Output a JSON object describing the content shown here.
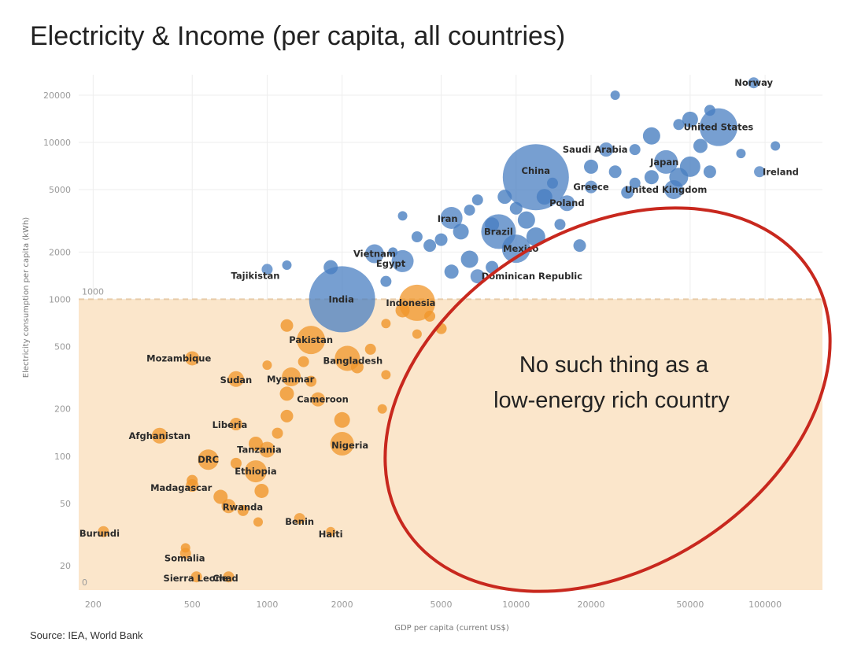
{
  "chart_data": {
    "type": "scatter",
    "title": "Electricity & Income (per capita, all countries)",
    "xlabel": "GDP per capita (current US$)",
    "ylabel": "Electricity consumption per capita (kWh)",
    "x_scale": "log",
    "y_scale": "log",
    "xlim": [
      175,
      170000
    ],
    "ylim": [
      14,
      27000
    ],
    "x_ticks": [
      {
        "value": 200,
        "label": "200"
      },
      {
        "value": 500,
        "label": "500"
      },
      {
        "value": 1000,
        "label": "1000"
      },
      {
        "value": 2000,
        "label": "2000"
      },
      {
        "value": 5000,
        "label": "5000"
      },
      {
        "value": 10000,
        "label": "10000"
      },
      {
        "value": 20000,
        "label": "20000"
      },
      {
        "value": 50000,
        "label": "50000"
      },
      {
        "value": 100000,
        "label": "100000"
      }
    ],
    "y_ticks": [
      {
        "value": 20,
        "label": "20"
      },
      {
        "value": 50,
        "label": "50"
      },
      {
        "value": 100,
        "label": "100"
      },
      {
        "value": 200,
        "label": "200"
      },
      {
        "value": 500,
        "label": "500"
      },
      {
        "value": 1000,
        "label": "1000"
      },
      {
        "value": 2000,
        "label": "2000"
      },
      {
        "value": 5000,
        "label": "5000"
      },
      {
        "value": 10000,
        "label": "10000"
      },
      {
        "value": 20000,
        "label": "20000"
      }
    ],
    "threshold": {
      "value": 1000,
      "label": "1000",
      "floor_label": "0"
    },
    "colors": {
      "above": "#4a7fc1",
      "below": "#f0962a",
      "shade": "#fbe6cb",
      "ellipse": "#c8281e",
      "threshold_line": "#e8cba8",
      "grid": "#eeeeee"
    },
    "annotation": {
      "lines": [
        "No such thing as a",
        "low-energy rich country"
      ]
    },
    "source": "Source: IEA, World Bank",
    "labeled_points": [
      {
        "name": "Norway",
        "x": 90000,
        "y": 24000,
        "r": 7
      },
      {
        "name": "United States",
        "x": 65000,
        "y": 12500,
        "r": 24
      },
      {
        "name": "Ireland",
        "x": 95000,
        "y": 6500,
        "r": 7
      },
      {
        "name": "Japan",
        "x": 40000,
        "y": 7500,
        "r": 15
      },
      {
        "name": "Saudi Arabia",
        "x": 23000,
        "y": 9000,
        "r": 9
      },
      {
        "name": "United Kingdom",
        "x": 43000,
        "y": 5000,
        "r": 12
      },
      {
        "name": "China",
        "x": 12000,
        "y": 6000,
        "r": 42
      },
      {
        "name": "Greece",
        "x": 20000,
        "y": 5200,
        "r": 8
      },
      {
        "name": "Poland",
        "x": 16000,
        "y": 4100,
        "r": 10
      },
      {
        "name": "Iran",
        "x": 5500,
        "y": 3300,
        "r": 14
      },
      {
        "name": "Brazil",
        "x": 8500,
        "y": 2700,
        "r": 22
      },
      {
        "name": "Mexico",
        "x": 10000,
        "y": 2100,
        "r": 18
      },
      {
        "name": "Vietnam",
        "x": 2700,
        "y": 1950,
        "r": 12
      },
      {
        "name": "Egypt",
        "x": 3500,
        "y": 1750,
        "r": 14
      },
      {
        "name": "Tajikistan",
        "x": 1000,
        "y": 1550,
        "r": 7
      },
      {
        "name": "Dominican Republic",
        "x": 7000,
        "y": 1400,
        "r": 9
      },
      {
        "name": "Indonesia",
        "x": 4000,
        "y": 950,
        "r": 23
      },
      {
        "name": "India",
        "x": 2000,
        "y": 1000,
        "r": 42
      },
      {
        "name": "Pakistan",
        "x": 1500,
        "y": 550,
        "r": 18
      },
      {
        "name": "Bangladesh",
        "x": 2100,
        "y": 420,
        "r": 16
      },
      {
        "name": "Mozambique",
        "x": 500,
        "y": 420,
        "r": 9
      },
      {
        "name": "Myanmar",
        "x": 1250,
        "y": 320,
        "r": 12
      },
      {
        "name": "Sudan",
        "x": 750,
        "y": 310,
        "r": 10
      },
      {
        "name": "Cameroon",
        "x": 1600,
        "y": 230,
        "r": 9
      },
      {
        "name": "Liberia",
        "x": 750,
        "y": 160,
        "r": 8
      },
      {
        "name": "Afghanistan",
        "x": 370,
        "y": 135,
        "r": 10
      },
      {
        "name": "Nigeria",
        "x": 2000,
        "y": 120,
        "r": 15
      },
      {
        "name": "Tanzania",
        "x": 1000,
        "y": 110,
        "r": 10
      },
      {
        "name": "DRC",
        "x": 580,
        "y": 95,
        "r": 13
      },
      {
        "name": "Ethiopia",
        "x": 900,
        "y": 80,
        "r": 14
      },
      {
        "name": "Madagascar",
        "x": 500,
        "y": 65,
        "r": 8
      },
      {
        "name": "Rwanda",
        "x": 700,
        "y": 48,
        "r": 9
      },
      {
        "name": "Benin",
        "x": 1350,
        "y": 40,
        "r": 7
      },
      {
        "name": "Haiti",
        "x": 1800,
        "y": 33,
        "r": 6
      },
      {
        "name": "Burundi",
        "x": 220,
        "y": 33,
        "r": 7
      },
      {
        "name": "Somalia",
        "x": 470,
        "y": 24,
        "r": 7
      },
      {
        "name": "Sierra Leone",
        "x": 520,
        "y": 17,
        "r": 7
      },
      {
        "name": "Chad",
        "x": 700,
        "y": 17,
        "r": 7
      }
    ],
    "points": [
      {
        "x": 25000,
        "y": 20000,
        "r": 6
      },
      {
        "x": 60000,
        "y": 16000,
        "r": 7
      },
      {
        "x": 50000,
        "y": 14000,
        "r": 10
      },
      {
        "x": 45000,
        "y": 13000,
        "r": 7
      },
      {
        "x": 35000,
        "y": 11000,
        "r": 11
      },
      {
        "x": 55000,
        "y": 9500,
        "r": 9
      },
      {
        "x": 30000,
        "y": 9000,
        "r": 7
      },
      {
        "x": 110000,
        "y": 9500,
        "r": 6
      },
      {
        "x": 80000,
        "y": 8500,
        "r": 6
      },
      {
        "x": 50000,
        "y": 7000,
        "r": 13
      },
      {
        "x": 45000,
        "y": 6000,
        "r": 12
      },
      {
        "x": 60000,
        "y": 6500,
        "r": 8
      },
      {
        "x": 35000,
        "y": 6000,
        "r": 9
      },
      {
        "x": 30000,
        "y": 5500,
        "r": 7
      },
      {
        "x": 28000,
        "y": 4800,
        "r": 8
      },
      {
        "x": 20000,
        "y": 7000,
        "r": 9
      },
      {
        "x": 25000,
        "y": 6500,
        "r": 8
      },
      {
        "x": 14000,
        "y": 5500,
        "r": 7
      },
      {
        "x": 13000,
        "y": 4500,
        "r": 10
      },
      {
        "x": 9000,
        "y": 4500,
        "r": 9
      },
      {
        "x": 7000,
        "y": 4300,
        "r": 7
      },
      {
        "x": 10000,
        "y": 3800,
        "r": 8
      },
      {
        "x": 11000,
        "y": 3200,
        "r": 11
      },
      {
        "x": 12000,
        "y": 2500,
        "r": 12
      },
      {
        "x": 8000,
        "y": 3000,
        "r": 9
      },
      {
        "x": 6000,
        "y": 2700,
        "r": 10
      },
      {
        "x": 5000,
        "y": 2400,
        "r": 8
      },
      {
        "x": 4500,
        "y": 2200,
        "r": 8
      },
      {
        "x": 4000,
        "y": 2500,
        "r": 7
      },
      {
        "x": 3500,
        "y": 3400,
        "r": 6
      },
      {
        "x": 6500,
        "y": 3700,
        "r": 7
      },
      {
        "x": 3200,
        "y": 2000,
        "r": 6
      },
      {
        "x": 15000,
        "y": 3000,
        "r": 7
      },
      {
        "x": 18000,
        "y": 2200,
        "r": 8
      },
      {
        "x": 6500,
        "y": 1800,
        "r": 11
      },
      {
        "x": 5500,
        "y": 1500,
        "r": 9
      },
      {
        "x": 8000,
        "y": 1600,
        "r": 8
      },
      {
        "x": 1800,
        "y": 1600,
        "r": 9
      },
      {
        "x": 1200,
        "y": 1650,
        "r": 6
      },
      {
        "x": 3000,
        "y": 1300,
        "r": 7
      },
      {
        "x": 3500,
        "y": 850,
        "r": 9
      },
      {
        "x": 4500,
        "y": 780,
        "r": 7
      },
      {
        "x": 3000,
        "y": 700,
        "r": 6
      },
      {
        "x": 5000,
        "y": 650,
        "r": 7
      },
      {
        "x": 4000,
        "y": 600,
        "r": 6
      },
      {
        "x": 1200,
        "y": 680,
        "r": 8
      },
      {
        "x": 1400,
        "y": 400,
        "r": 7
      },
      {
        "x": 2600,
        "y": 480,
        "r": 7
      },
      {
        "x": 3000,
        "y": 330,
        "r": 6
      },
      {
        "x": 2300,
        "y": 370,
        "r": 8
      },
      {
        "x": 1000,
        "y": 380,
        "r": 6
      },
      {
        "x": 1500,
        "y": 300,
        "r": 7
      },
      {
        "x": 1200,
        "y": 250,
        "r": 9
      },
      {
        "x": 2900,
        "y": 200,
        "r": 6
      },
      {
        "x": 2000,
        "y": 170,
        "r": 10
      },
      {
        "x": 1200,
        "y": 180,
        "r": 8
      },
      {
        "x": 1100,
        "y": 140,
        "r": 7
      },
      {
        "x": 900,
        "y": 120,
        "r": 9
      },
      {
        "x": 750,
        "y": 90,
        "r": 7
      },
      {
        "x": 950,
        "y": 60,
        "r": 9
      },
      {
        "x": 650,
        "y": 55,
        "r": 9
      },
      {
        "x": 800,
        "y": 45,
        "r": 7
      },
      {
        "x": 920,
        "y": 38,
        "r": 6
      },
      {
        "x": 470,
        "y": 26,
        "r": 6
      },
      {
        "x": 500,
        "y": 70,
        "r": 7
      }
    ]
  }
}
